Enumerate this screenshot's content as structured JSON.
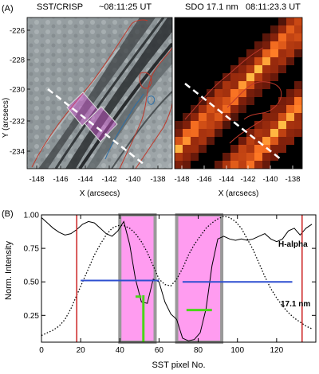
{
  "panel_a": {
    "label": "(A)",
    "left_title": "SST/CRISP",
    "left_time": "~08:11:25 UT",
    "right_title": "SDO 17.1 nm",
    "right_time": "08:11:23.3 UT",
    "ylabel": "Y (arcsecs)",
    "xlabel": "X (arcsecs)",
    "yticks": [
      "-226",
      "-228",
      "-230",
      "-232",
      "-234"
    ],
    "xticks": [
      "-148",
      "-146",
      "-144",
      "-142",
      "-140",
      "-138"
    ],
    "colors": {
      "contour_red": "#c0392b",
      "contour_blue": "#2c6fa8",
      "roi_pink": "#d455d4",
      "aia_orange": "#f5a020",
      "slit": "#ffffff"
    }
  },
  "panel_b": {
    "label": "(B)",
    "ylabel": "Norm.  Intensity",
    "xlabel": "SST pixel No.",
    "halpha_label": "H-alpha",
    "aia_label": "17.1 nm",
    "colors": {
      "halpha": "#000000",
      "aia": "#000000",
      "threshold": "#2d4fd0",
      "band_fill": "#ff9cf0",
      "band_border": "#999999",
      "vline": "#cc2222",
      "marker": "#4bd619"
    }
  },
  "chart_data": {
    "type": "line",
    "xlim": [
      0,
      140
    ],
    "ylim": [
      0.05,
      1.0
    ],
    "xticks": [
      "0",
      "20",
      "40",
      "60",
      "80",
      "100",
      "120"
    ],
    "yticks": [
      "1.00",
      "0.75",
      "0.50",
      "0.25"
    ],
    "series": [
      {
        "name": "H-alpha",
        "style": "solid",
        "x": [
          0,
          3,
          6,
          9,
          12,
          15,
          18,
          21,
          24,
          27,
          30,
          33,
          36,
          39,
          42,
          45,
          48,
          51,
          54,
          57,
          60,
          63,
          66,
          69,
          72,
          75,
          78,
          81,
          84,
          87,
          90,
          93,
          96,
          99,
          102,
          105,
          108,
          111,
          114,
          117,
          120,
          123,
          126,
          129,
          132,
          135,
          138
        ],
        "y": [
          0.98,
          0.94,
          0.9,
          0.87,
          0.85,
          0.86,
          0.89,
          0.93,
          0.95,
          0.94,
          0.9,
          0.86,
          0.84,
          0.88,
          0.95,
          0.78,
          0.52,
          0.35,
          0.34,
          0.52,
          0.5,
          0.35,
          0.26,
          0.22,
          0.08,
          0.06,
          0.07,
          0.12,
          0.3,
          0.62,
          0.82,
          0.84,
          0.82,
          0.81,
          0.82,
          0.81,
          0.82,
          0.84,
          0.86,
          0.82,
          0.8,
          0.82,
          0.88,
          0.9,
          0.85,
          0.9,
          0.93
        ]
      },
      {
        "name": "17.1 nm",
        "style": "dotted",
        "x": [
          0,
          3,
          6,
          9,
          12,
          15,
          18,
          21,
          24,
          27,
          30,
          33,
          36,
          39,
          42,
          45,
          48,
          51,
          54,
          57,
          60,
          63,
          66,
          69,
          72,
          75,
          78,
          81,
          84,
          87,
          90,
          93,
          96,
          99,
          102,
          105,
          108,
          111,
          114,
          117,
          120,
          123,
          126,
          129,
          132,
          135,
          138
        ],
        "y": [
          0.1,
          0.12,
          0.14,
          0.17,
          0.22,
          0.3,
          0.4,
          0.5,
          0.6,
          0.7,
          0.78,
          0.85,
          0.9,
          0.92,
          0.92,
          0.9,
          0.86,
          0.8,
          0.72,
          0.62,
          0.52,
          0.48,
          0.47,
          0.52,
          0.6,
          0.7,
          0.78,
          0.84,
          0.9,
          0.94,
          0.97,
          0.99,
          0.98,
          0.95,
          0.9,
          0.82,
          0.74,
          0.64,
          0.54,
          0.45,
          0.38,
          0.32,
          0.27,
          0.23,
          0.2,
          0.17,
          0.15
        ]
      }
    ],
    "thresholds": [
      {
        "y": 0.51,
        "x": [
          20,
          60
        ]
      },
      {
        "y": 0.5,
        "x": [
          72,
          128
        ]
      }
    ],
    "highlight_bands": [
      {
        "x": [
          40,
          58
        ]
      },
      {
        "x": [
          69,
          92
        ]
      }
    ],
    "vlines": [
      18,
      133
    ],
    "markers": [
      {
        "x": [
          48,
          51
        ],
        "y": 0.39,
        "vline_y": [
          0.05,
          0.4
        ],
        "vline_x": 52
      },
      {
        "x": [
          74,
          87
        ],
        "y": 0.29
      }
    ]
  }
}
